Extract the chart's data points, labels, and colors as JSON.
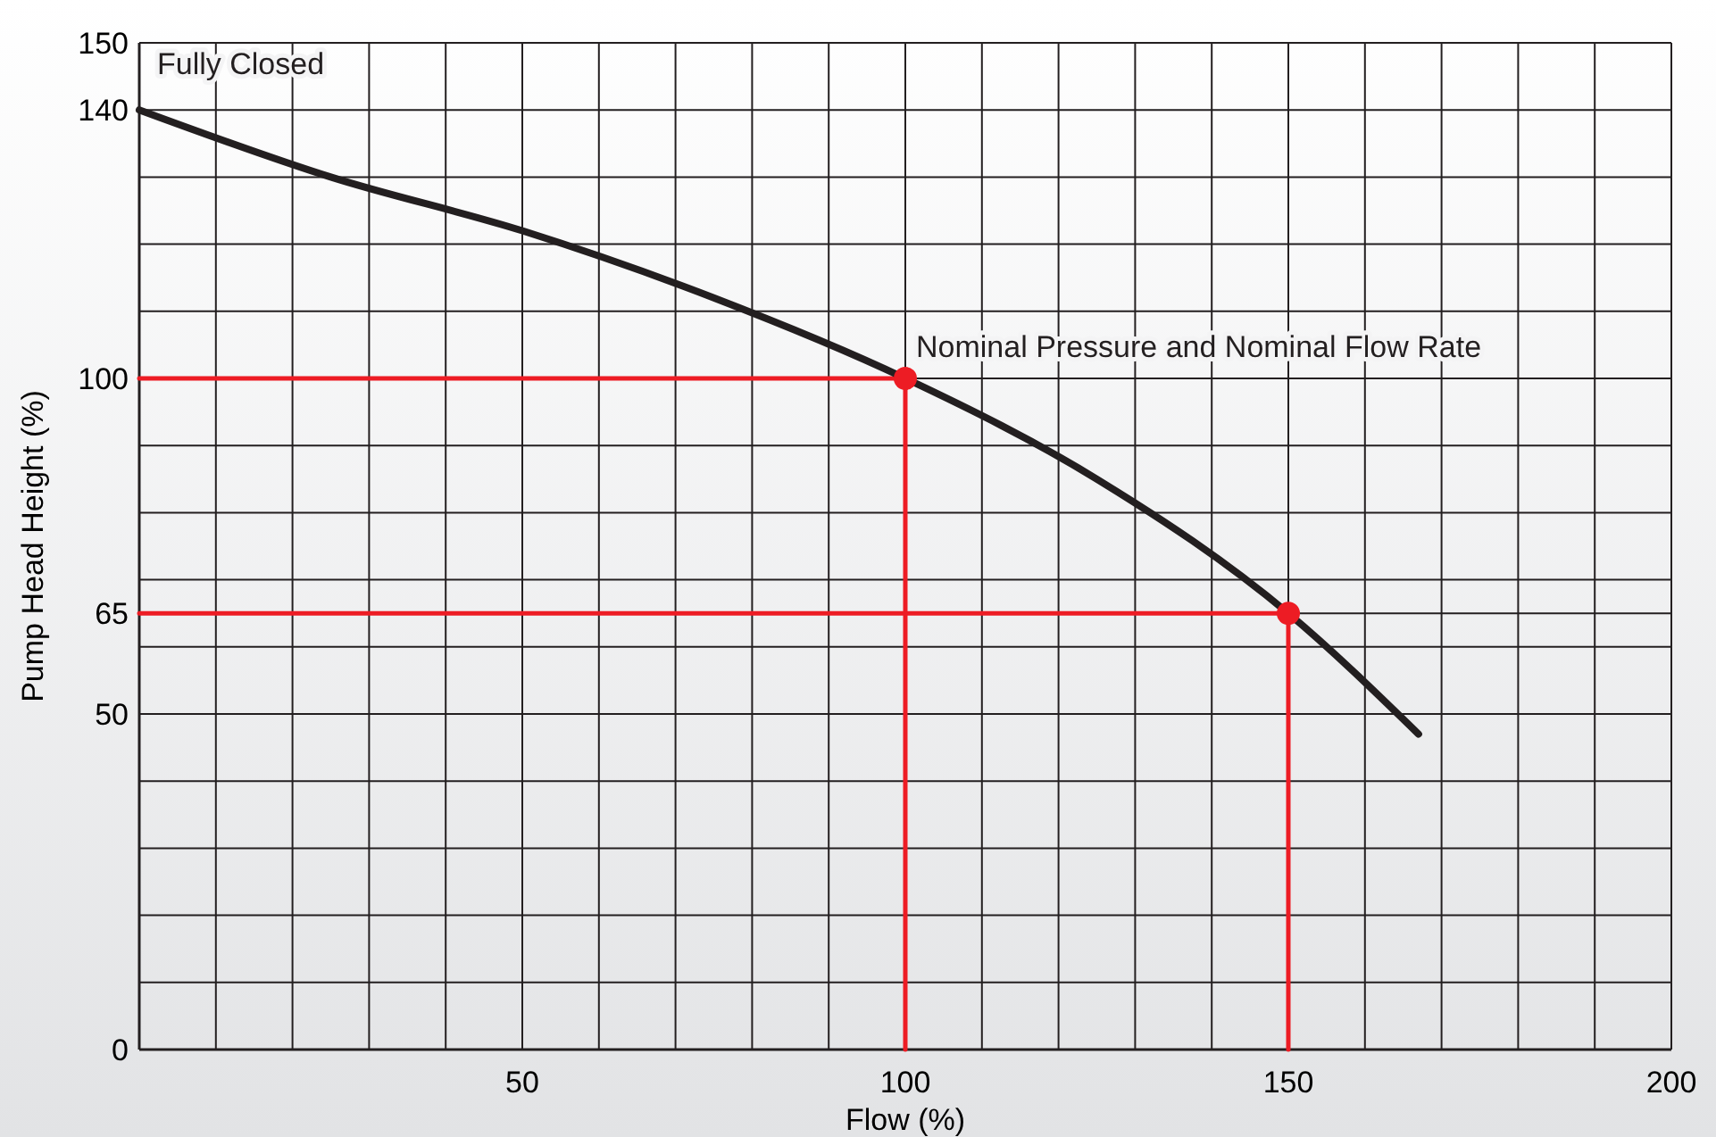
{
  "chart_data": {
    "type": "line",
    "xlabel": "Flow (%)",
    "ylabel": "Pump Head Height (%)",
    "xlim": [
      0,
      200
    ],
    "ylim": [
      0,
      150
    ],
    "xticks": [
      {
        "value": 10,
        "label": null
      },
      {
        "value": 20,
        "label": null
      },
      {
        "value": 30,
        "label": null
      },
      {
        "value": 40,
        "label": null
      },
      50,
      {
        "value": 60,
        "label": null
      },
      {
        "value": 70,
        "label": null
      },
      {
        "value": 80,
        "label": null
      },
      {
        "value": 90,
        "label": null
      },
      100,
      {
        "value": 110,
        "label": null
      },
      {
        "value": 120,
        "label": null
      },
      {
        "value": 130,
        "label": null
      },
      {
        "value": 140,
        "label": null
      },
      150,
      {
        "value": 160,
        "label": null
      },
      {
        "value": 170,
        "label": null
      },
      {
        "value": 180,
        "label": null
      },
      {
        "value": 190,
        "label": null
      },
      200
    ],
    "yticks": [
      0,
      {
        "value": 10,
        "label": null
      },
      {
        "value": 20,
        "label": null
      },
      {
        "value": 30,
        "label": null
      },
      {
        "value": 40,
        "label": null
      },
      50,
      {
        "value": 60,
        "label": null
      },
      65,
      {
        "value": 70,
        "label": null
      },
      {
        "value": 80,
        "label": null
      },
      {
        "value": 90,
        "label": null
      },
      100,
      {
        "value": 110,
        "label": null
      },
      {
        "value": 120,
        "label": null
      },
      {
        "value": 130,
        "label": null
      },
      140,
      150
    ],
    "grid": true,
    "series": [
      {
        "type": "line",
        "color": "#ed1c24",
        "x": [
          0,
          100,
          100
        ],
        "values": [
          100,
          100,
          0
        ],
        "marker": "none"
      },
      {
        "type": "line",
        "color": "#ed1c24",
        "x": [
          0,
          150,
          150
        ],
        "values": [
          65,
          65,
          0
        ],
        "marker": "none"
      },
      {
        "color": "#231f20",
        "x": [
          0,
          25,
          50,
          75,
          100,
          125,
          150,
          167
        ],
        "values": [
          140,
          130,
          122,
          112,
          100,
          85,
          65,
          47
        ],
        "marker": "none"
      },
      {
        "type": "scatter",
        "color": "#ed1c24",
        "x": [
          100,
          150
        ],
        "values": [
          100,
          65
        ],
        "marker": "circle"
      }
    ],
    "annotations": [
      {
        "text": "Fully Closed",
        "x": 0,
        "y": 140
      },
      {
        "text": "Nominal Pressure and Nominal Flow Rate",
        "x": 100,
        "y": 100
      }
    ]
  }
}
